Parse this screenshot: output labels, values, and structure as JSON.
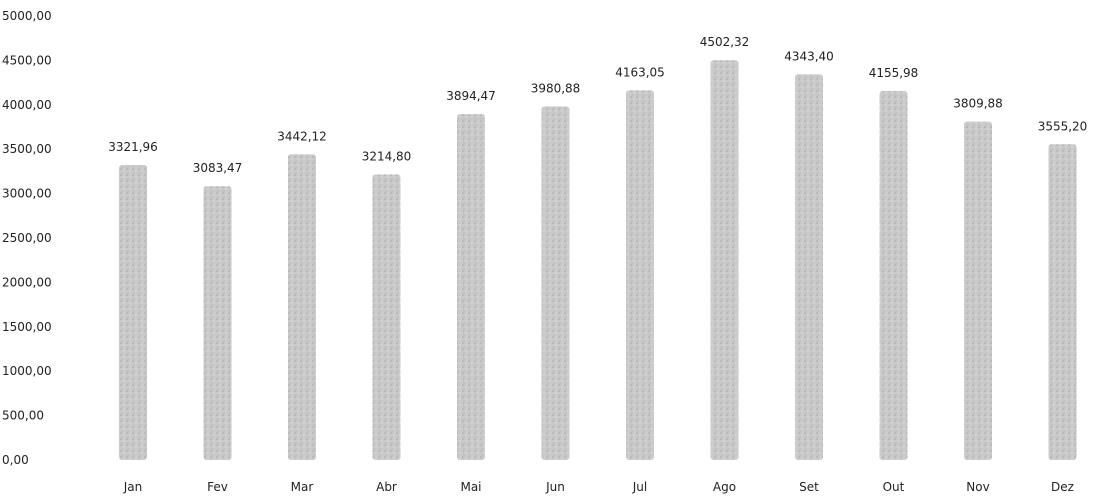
{
  "chart_data": {
    "type": "bar",
    "categories": [
      "Jan",
      "Fev",
      "Mar",
      "Abr",
      "Mai",
      "Jun",
      "Jul",
      "Ago",
      "Set",
      "Out",
      "Nov",
      "Dez"
    ],
    "values": [
      3321.96,
      3083.47,
      3442.12,
      3214.8,
      3894.47,
      3980.88,
      4163.05,
      4502.32,
      4343.4,
      4155.98,
      3809.88,
      3555.2
    ],
    "data_labels": [
      "3321,96",
      "3083,47",
      "3442,12",
      "3214,80",
      "3894,47",
      "3980,88",
      "4163,05",
      "4502,32",
      "4343,40",
      "4155,98",
      "3809,88",
      "3555,20"
    ],
    "y_ticks": [
      "0,00",
      "500,00",
      "1000,00",
      "1500,00",
      "2000,00",
      "2500,00",
      "3000,00",
      "3500,00",
      "4000,00",
      "4500,00",
      "5000,00"
    ],
    "ylim": [
      0,
      5000
    ],
    "title": "",
    "xlabel": "",
    "ylabel": "",
    "grid": false,
    "legend": "none",
    "bar_color": "#bdbdbd"
  }
}
